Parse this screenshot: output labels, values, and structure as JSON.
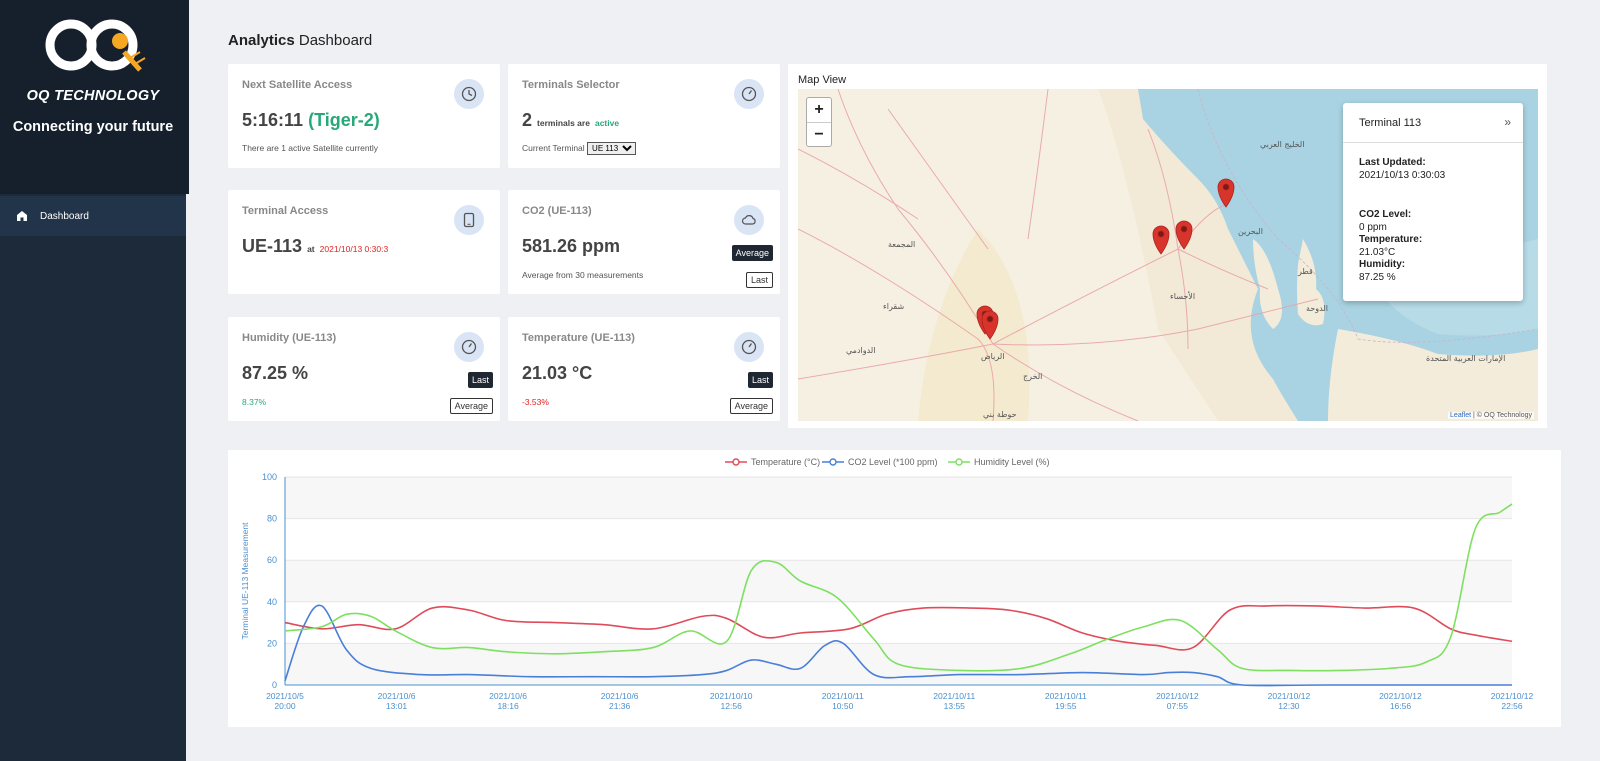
{
  "brand": {
    "name": "OQ TECHNOLOGY",
    "tagline": "Connecting your future"
  },
  "sidebar": {
    "items": [
      {
        "label": "Dashboard",
        "icon": "dashboard-icon",
        "active": true
      }
    ]
  },
  "page": {
    "title_bold": "Analytics",
    "title_rest": " Dashboard"
  },
  "cards": {
    "satellite": {
      "title": "Next Satellite Access",
      "time": "5:16:11",
      "satellite": "(Tiger-2)",
      "sub": "There are 1 active Satellite currently",
      "icon": "clock-icon"
    },
    "terminals": {
      "title": "Terminals Selector",
      "count": "2",
      "text_mid": "terminals are",
      "status": "active",
      "current_label": "Current Terminal",
      "current_value": "UE 113",
      "icon": "gauge-icon"
    },
    "terminal_access": {
      "title": "Terminal Access",
      "terminal": "UE-113",
      "at": "at",
      "timestamp": "2021/10/13 0:30:3",
      "icon": "tablet-icon"
    },
    "co2": {
      "title": "CO2 (UE-113)",
      "value": "581.26 ppm",
      "sub": "Average from 30 measurements",
      "btn_average": "Average",
      "btn_last": "Last",
      "icon": "cloud-icon"
    },
    "humidity": {
      "title": "Humidity (UE-113)",
      "value": "87.25 %",
      "change": "8.37%",
      "btn_last": "Last",
      "btn_average": "Average",
      "icon": "gauge-icon"
    },
    "temperature": {
      "title": "Temperature (UE-113)",
      "value": "21.03 °C",
      "change": "-3.53%",
      "btn_last": "Last",
      "btn_average": "Average",
      "icon": "gauge-icon"
    }
  },
  "map": {
    "title": "Map View",
    "zoom_in": "+",
    "zoom_out": "−",
    "popup": {
      "title": "Terminal 113",
      "close": "»",
      "last_updated_label": "Last Updated:",
      "last_updated_value": "2021/10/13 0:30:03",
      "co2_label": "CO2 Level:",
      "co2_value": "0 ppm",
      "temp_label": "Temperature:",
      "temp_value": "21.03°C",
      "hum_label": "Humidity:",
      "hum_value": "87.25 %"
    },
    "attribution_link": "Leaflet",
    "attribution_rest": " | © OQ Technology",
    "place_labels": [
      "الخليج العربي",
      "البحرين",
      "الأحساء",
      "الرياض",
      "الدوحة",
      "قطر",
      "الإمارات العربية المتحدة",
      "الدوادمي",
      "شقراء",
      "المجمعة",
      "الخرج",
      "حوطة بني"
    ]
  },
  "chart_data": {
    "type": "line",
    "ylabel": "Terminal UE-113 Measurement",
    "ylim": [
      0,
      100
    ],
    "yticks": [
      0,
      20,
      40,
      60,
      80,
      100
    ],
    "xlim": [
      0,
      100
    ],
    "categories": [
      "2021/10/5 20:00",
      "2021/10/6 13:01",
      "2021/10/6 18:16",
      "2021/10/6 21:36",
      "2021/10/10 12:56",
      "2021/10/11 10:50",
      "2021/10/11 13:55",
      "2021/10/11 19:55",
      "2021/10/12 07:55",
      "2021/10/12 12:30",
      "2021/10/12 16:56",
      "2021/10/12 22:56"
    ],
    "series": [
      {
        "name": "Temperature (°C)",
        "color": "#e04b5a",
        "points": [
          [
            0,
            30
          ],
          [
            3,
            27
          ],
          [
            6,
            29
          ],
          [
            9,
            27
          ],
          [
            12,
            37
          ],
          [
            15,
            36
          ],
          [
            18,
            31
          ],
          [
            22,
            30
          ],
          [
            26,
            29
          ],
          [
            30,
            27
          ],
          [
            34,
            33
          ],
          [
            36,
            32
          ],
          [
            39,
            23
          ],
          [
            42,
            25
          ],
          [
            46,
            27
          ],
          [
            49,
            34
          ],
          [
            52,
            37
          ],
          [
            56,
            37
          ],
          [
            59,
            36
          ],
          [
            62,
            32
          ],
          [
            65,
            25
          ],
          [
            68,
            21
          ],
          [
            71,
            19
          ],
          [
            74,
            18
          ],
          [
            77,
            36
          ],
          [
            80,
            38
          ],
          [
            84,
            38
          ],
          [
            88,
            37
          ],
          [
            92,
            37
          ],
          [
            95,
            27
          ],
          [
            97,
            24
          ],
          [
            100,
            21
          ]
        ]
      },
      {
        "name": "CO2 Level (*100 ppm)",
        "color": "#4a7fd8",
        "points": [
          [
            0,
            2
          ],
          [
            1.5,
            28
          ],
          [
            3,
            38
          ],
          [
            5,
            17
          ],
          [
            7,
            8
          ],
          [
            11,
            5
          ],
          [
            15,
            5
          ],
          [
            20,
            4
          ],
          [
            25,
            4
          ],
          [
            30,
            4
          ],
          [
            34,
            5
          ],
          [
            36,
            7
          ],
          [
            38,
            12
          ],
          [
            40,
            10
          ],
          [
            42,
            8
          ],
          [
            44,
            19
          ],
          [
            45.5,
            20
          ],
          [
            48,
            5
          ],
          [
            51,
            4
          ],
          [
            55,
            5
          ],
          [
            60,
            5
          ],
          [
            65,
            6
          ],
          [
            70,
            5
          ],
          [
            72,
            6
          ],
          [
            74,
            6
          ],
          [
            76,
            4
          ],
          [
            78,
            0
          ],
          [
            85,
            0
          ],
          [
            100,
            0
          ]
        ]
      },
      {
        "name": "Humidity Level (%)",
        "color": "#7de060",
        "points": [
          [
            0,
            26
          ],
          [
            3,
            28
          ],
          [
            5,
            34
          ],
          [
            7,
            33
          ],
          [
            9,
            26
          ],
          [
            12,
            18
          ],
          [
            15,
            18
          ],
          [
            18,
            16
          ],
          [
            22,
            15
          ],
          [
            26,
            16
          ],
          [
            30,
            18
          ],
          [
            33,
            26
          ],
          [
            36,
            21
          ],
          [
            38,
            55
          ],
          [
            40,
            59
          ],
          [
            42,
            50
          ],
          [
            45,
            42
          ],
          [
            48,
            22
          ],
          [
            50,
            10
          ],
          [
            55,
            7
          ],
          [
            60,
            8
          ],
          [
            64,
            15
          ],
          [
            67,
            22
          ],
          [
            70,
            28
          ],
          [
            73,
            31
          ],
          [
            76,
            17
          ],
          [
            78,
            8
          ],
          [
            82,
            7
          ],
          [
            86,
            7
          ],
          [
            90,
            8
          ],
          [
            93,
            11
          ],
          [
            95,
            23
          ],
          [
            97,
            75
          ],
          [
            99,
            83
          ],
          [
            100,
            87
          ]
        ]
      }
    ]
  }
}
